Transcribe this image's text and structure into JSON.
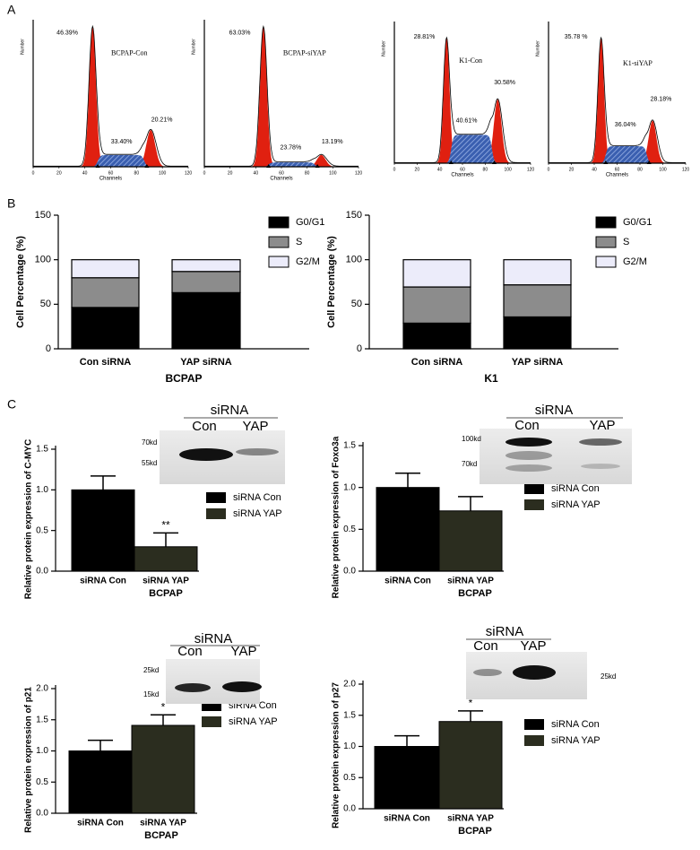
{
  "panels": [
    "A",
    "B",
    "C"
  ],
  "chart_data": [
    {
      "type": "flow",
      "title": "BCPAP-Con",
      "xlabel": "Channels",
      "ylabel": "Number",
      "xlim": [
        0,
        120
      ],
      "xticks": [
        0,
        20,
        40,
        60,
        80,
        100,
        120
      ],
      "annotations": [
        "46.39%",
        "33.40%",
        "20.21%"
      ]
    },
    {
      "type": "flow",
      "title": "BCPAP-siYAP",
      "xlabel": "Channels",
      "ylabel": "Number",
      "xlim": [
        0,
        120
      ],
      "xticks": [
        0,
        20,
        40,
        60,
        80,
        100,
        120
      ],
      "annotations": [
        "63.03%",
        "23.78%",
        "13.19%"
      ]
    },
    {
      "type": "flow",
      "title": "K1-Con",
      "xlabel": "Channels",
      "ylabel": "Number",
      "xlim": [
        0,
        120
      ],
      "xticks": [
        0,
        20,
        40,
        60,
        80,
        100,
        120
      ],
      "annotations": [
        "28.81%",
        "40.61%",
        "30.58%"
      ]
    },
    {
      "type": "flow",
      "title": "K1-siYAP",
      "xlabel": "Channels",
      "ylabel": "Number",
      "xlim": [
        0,
        120
      ],
      "xticks": [
        0,
        20,
        40,
        60,
        80,
        100,
        120
      ],
      "annotations": [
        "35.78 %",
        "36.04%",
        "28.18%"
      ]
    },
    {
      "type": "stacked",
      "ylabel": "Cell Percentage (%)",
      "xlabel": "BCPAP",
      "categories": [
        "Con siRNA",
        "YAP siRNA"
      ],
      "series": [
        {
          "name": "G0/G1",
          "color": "#000000",
          "values": [
            46.39,
            63.03
          ]
        },
        {
          "name": "S",
          "color": "#8c8c8c",
          "values": [
            33.4,
            23.78
          ]
        },
        {
          "name": "G2/M",
          "color": "#ececfa",
          "values": [
            20.21,
            13.19
          ]
        }
      ],
      "ylim": [
        0,
        150
      ],
      "yticks": [
        0,
        50,
        100,
        150
      ]
    },
    {
      "type": "stacked",
      "ylabel": "Cell Percentage (%)",
      "xlabel": "K1",
      "categories": [
        "Con siRNA",
        "YAP siRNA"
      ],
      "series": [
        {
          "name": "G0/G1",
          "color": "#000000",
          "values": [
            28.81,
            35.78
          ]
        },
        {
          "name": "S",
          "color": "#8c8c8c",
          "values": [
            40.61,
            36.04
          ]
        },
        {
          "name": "G2/M",
          "color": "#ececfa",
          "values": [
            30.58,
            28.18
          ]
        }
      ],
      "ylim": [
        0,
        150
      ],
      "yticks": [
        0,
        50,
        100,
        150
      ]
    },
    {
      "type": "bar",
      "ylabel": "Relative protein expression of C-MYC",
      "xlabel": "BCPAP",
      "categories": [
        "siRNA Con",
        "siRNA YAP"
      ],
      "values": [
        1.0,
        0.3
      ],
      "errors": [
        0.17,
        0.17
      ],
      "colors": [
        "#000000",
        "#2b2d1f"
      ],
      "significance": "**",
      "legend": [
        "siRNA Con",
        "siRNA YAP"
      ],
      "ylim": [
        0,
        1.5
      ],
      "yticks": [
        {
          "value": 0,
          "label": "0.0"
        },
        {
          "value": 0.5,
          "label": "0.5"
        },
        {
          "value": 1,
          "label": "1.0"
        },
        {
          "value": 1.5,
          "label": "1.5"
        }
      ],
      "blot": {
        "title": "siRNA",
        "lanes": [
          "Con",
          "YAP"
        ],
        "markers": [
          "70kd",
          "55kd"
        ]
      }
    },
    {
      "type": "bar",
      "ylabel": "Relative protein expression of Foxo3a",
      "xlabel": "BCPAP",
      "categories": [
        "siRNA Con",
        "siRNA YAP"
      ],
      "values": [
        1.0,
        0.72
      ],
      "errors": [
        0.17,
        0.17
      ],
      "colors": [
        "#000000",
        "#2b2d1f"
      ],
      "legend": [
        "siRNA Con",
        "siRNA YAP"
      ],
      "ylim": [
        0,
        1.5
      ],
      "yticks": [
        {
          "value": 0,
          "label": "0.0"
        },
        {
          "value": 0.5,
          "label": "0.5"
        },
        {
          "value": 1,
          "label": "1.0"
        },
        {
          "value": 1.5,
          "label": "1.5"
        }
      ],
      "blot": {
        "title": "siRNA",
        "lanes": [
          "Con",
          "YAP"
        ],
        "markers": [
          "100kd",
          "70kd"
        ]
      }
    },
    {
      "type": "bar",
      "ylabel": "Relative protein expression of p21",
      "xlabel": "BCPAP",
      "categories": [
        "siRNA Con",
        "siRNA YAP"
      ],
      "values": [
        1.0,
        1.41
      ],
      "errors": [
        0.17,
        0.17
      ],
      "colors": [
        "#000000",
        "#2b2d1f"
      ],
      "significance": "*",
      "legend": [
        "siRNA Con",
        "siRNA YAP"
      ],
      "ylim": [
        0,
        2
      ],
      "yticks": [
        {
          "value": 0,
          "label": "0.0"
        },
        {
          "value": 0.5,
          "label": "0.5"
        },
        {
          "value": 1,
          "label": "1.0"
        },
        {
          "value": 1.5,
          "label": "1.5"
        },
        {
          "value": 2,
          "label": "2.0"
        }
      ],
      "blot": {
        "title": "siRNA",
        "lanes": [
          "Con",
          "YAP"
        ],
        "markers": [
          "25kd",
          "15kd"
        ]
      }
    },
    {
      "type": "bar",
      "ylabel": "Relative protein expression of p27",
      "xlabel": "BCPAP",
      "categories": [
        "siRNA Con",
        "siRNA YAP"
      ],
      "values": [
        1.0,
        1.4
      ],
      "errors": [
        0.17,
        0.17
      ],
      "colors": [
        "#000000",
        "#2b2d1f"
      ],
      "significance": "*",
      "legend": [
        "siRNA Con",
        "siRNA YAP"
      ],
      "ylim": [
        0,
        2
      ],
      "yticks": [
        {
          "value": 0,
          "label": "0.0"
        },
        {
          "value": 0.5,
          "label": "0.5"
        },
        {
          "value": 1,
          "label": "1.0"
        },
        {
          "value": 1.5,
          "label": "1.5"
        },
        {
          "value": 2,
          "label": "2.0"
        }
      ],
      "blot": {
        "title": "siRNA",
        "lanes": [
          "Con",
          "YAP"
        ],
        "markers": [
          "25kd"
        ]
      }
    }
  ]
}
